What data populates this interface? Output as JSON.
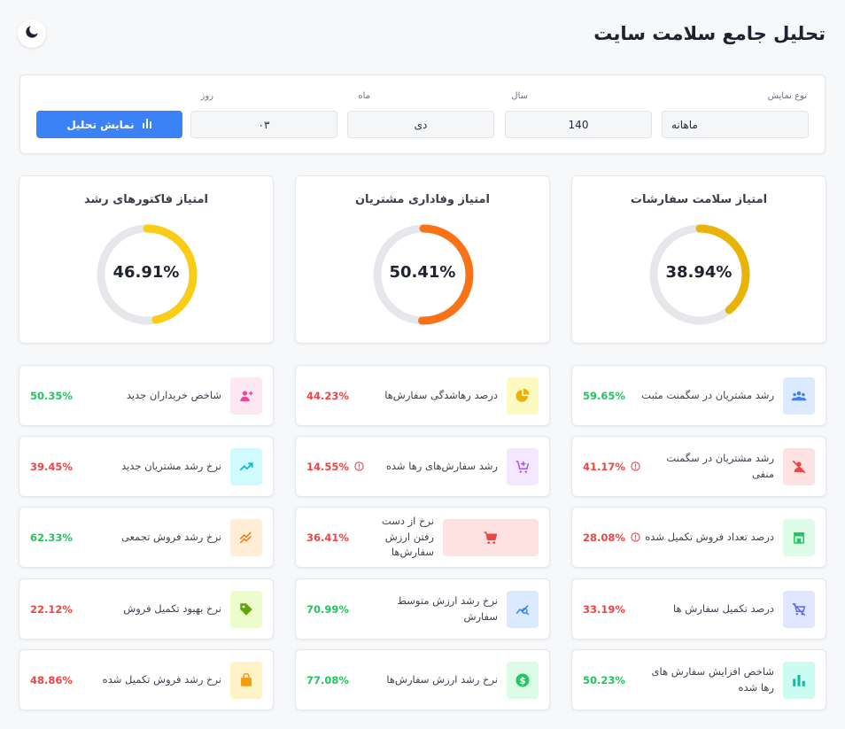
{
  "header": {
    "title": "تحلیل جامع سلامت سایت",
    "theme_icon": "moon-icon"
  },
  "filters": {
    "display_type": {
      "label": "نوع نمایش",
      "value": "ماهانه"
    },
    "year": {
      "label": "سال",
      "value": "140"
    },
    "month": {
      "label": "ماه",
      "value": "دی"
    },
    "day": {
      "label": "روز",
      "value": "۰۳"
    },
    "submit_label": "نمایش تحلیل"
  },
  "gauges": [
    {
      "title": "امتیاز سلامت سفارشات",
      "value_text": "38.94%",
      "fraction": 0.3894,
      "color": "#eab308"
    },
    {
      "title": "امتیاز وفاداری مشتریان",
      "value_text": "50.41%",
      "fraction": 0.5041,
      "color": "#f97316"
    },
    {
      "title": "امتیاز فاکتورهای رشد",
      "value_text": "46.91%",
      "fraction": 0.4691,
      "color": "#facc15"
    }
  ],
  "metrics": {
    "col1": [
      {
        "label": "رشد مشتریان در سگمنت مثبت",
        "value": "59.65%",
        "status": "good",
        "icon": "users-group-icon",
        "tile_bg": "#dbeafe",
        "icon_color": "#3b82f6"
      },
      {
        "label": "رشد مشتریان در سگمنت منفی",
        "value": "41.17%",
        "status": "bad",
        "warning": true,
        "icon": "user-off-icon",
        "tile_bg": "#fee2e2",
        "icon_color": "#ef4444"
      },
      {
        "label": "درصد تعداد فروش تکمیل شده",
        "value": "28.08%",
        "status": "bad",
        "warning": true,
        "icon": "store-icon",
        "tile_bg": "#dcfce7",
        "icon_color": "#22c55e"
      },
      {
        "label": "درصد تکمیل سفارش ها",
        "value": "33.19%",
        "status": "bad",
        "icon": "cart-off-icon",
        "tile_bg": "#e0e7ff",
        "icon_color": "#6366f1"
      },
      {
        "label": "شاخص افزایش سفارش های رها شده",
        "value": "50.23%",
        "status": "good",
        "icon": "bar-chart-icon",
        "tile_bg": "#ccfbf1",
        "icon_color": "#14b8a6"
      }
    ],
    "col2": [
      {
        "label": "درصد رهاشدگی سفارش‌ها",
        "value": "44.23%",
        "status": "bad",
        "icon": "pie-chart-icon",
        "tile_bg": "#fef9c3",
        "icon_color": "#eab308"
      },
      {
        "label": "رشد سفارش‌های رها شده",
        "value": "14.55%",
        "status": "bad",
        "warning": true,
        "icon": "cart-plus-icon",
        "tile_bg": "#f3e8ff",
        "icon_color": "#a855f7"
      },
      {
        "label": "نرخ از دست رفتن ارزش سفارش‌ها",
        "value": "36.41%",
        "status": "bad",
        "icon": "cart-icon",
        "tile_bg": "#fee2e2",
        "icon_color": "#ef4444",
        "wide_tile": true
      },
      {
        "label": "نرخ رشد ارزش متوسط سفارش",
        "value": "70.99%",
        "status": "good",
        "icon": "chart-search-icon",
        "tile_bg": "#dbeafe",
        "icon_color": "#3b82f6"
      },
      {
        "label": "نرخ رشد ارزش سفارش‌ها",
        "value": "77.08%",
        "status": "good",
        "icon": "dollar-coin-icon",
        "tile_bg": "#dcfce7",
        "icon_color": "#22c55e"
      }
    ],
    "col3": [
      {
        "label": "شاخص خریداران جدید",
        "value": "50.35%",
        "status": "good",
        "icon": "user-plus-icon",
        "tile_bg": "#fce7f3",
        "icon_color": "#ec4899"
      },
      {
        "label": "نرخ رشد مشتریان جدید",
        "value": "39.45%",
        "status": "bad",
        "icon": "trending-up-icon",
        "tile_bg": "#cffafe",
        "icon_color": "#06b6d4"
      },
      {
        "label": "نرخ رشد فروش تجمعی",
        "value": "62.33%",
        "status": "good",
        "icon": "double-trend-icon",
        "tile_bg": "#ffedd5",
        "icon_color": "#f97316"
      },
      {
        "label": "نرخ بهبود تکمیل فروش",
        "value": "22.12%",
        "status": "bad",
        "icon": "tag-icon",
        "tile_bg": "#ecfccb",
        "icon_color": "#65a30d"
      },
      {
        "label": "نرخ رشد فروش تکمیل شده",
        "value": "48.86%",
        "status": "bad",
        "icon": "shopping-bag-icon",
        "tile_bg": "#fef3c7",
        "icon_color": "#f59e0b"
      }
    ]
  }
}
